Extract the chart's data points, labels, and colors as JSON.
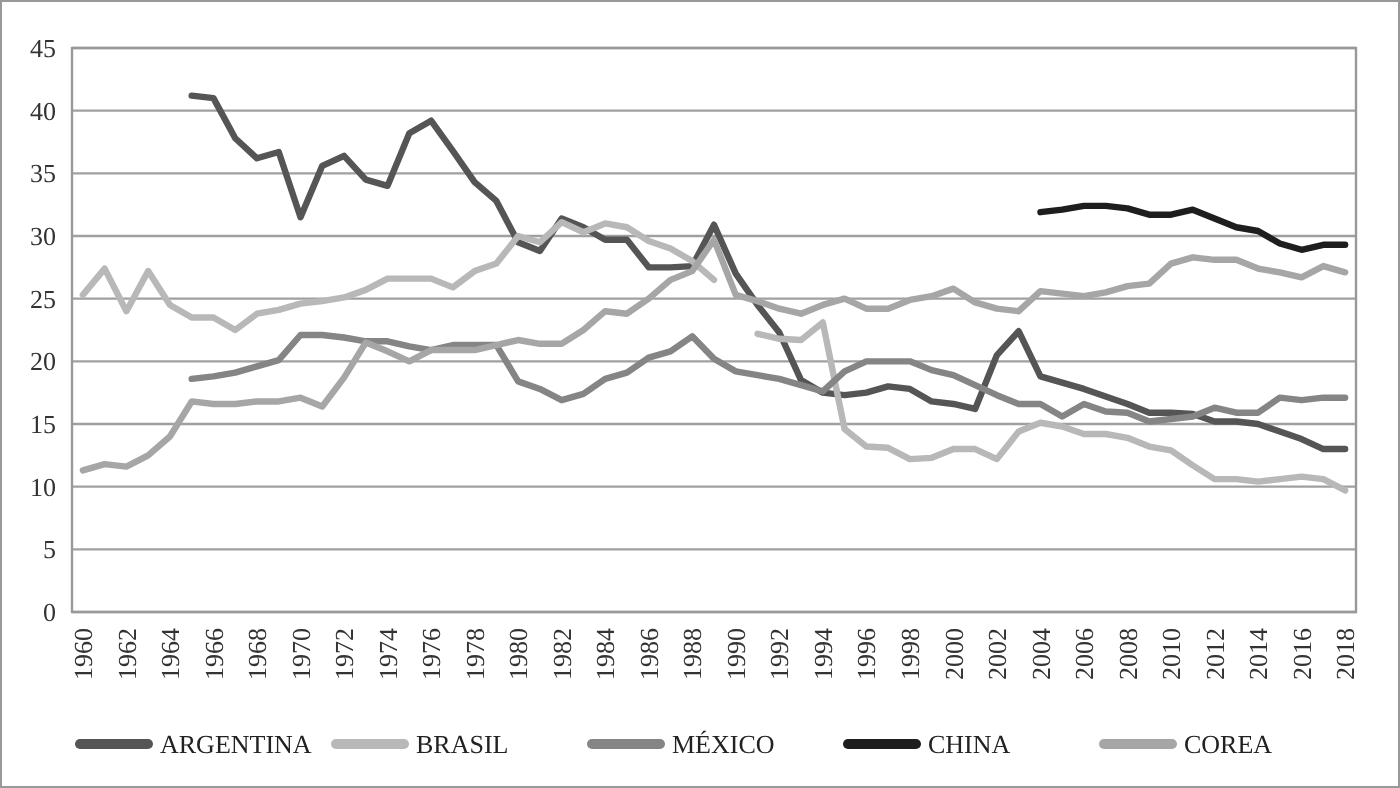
{
  "chart_data": {
    "type": "line",
    "x": [
      1960,
      1961,
      1962,
      1963,
      1964,
      1965,
      1966,
      1967,
      1968,
      1969,
      1970,
      1971,
      1972,
      1973,
      1974,
      1975,
      1976,
      1977,
      1978,
      1979,
      1980,
      1981,
      1982,
      1983,
      1984,
      1985,
      1986,
      1987,
      1988,
      1989,
      1990,
      1991,
      1992,
      1993,
      1994,
      1995,
      1996,
      1997,
      1998,
      1999,
      2000,
      2001,
      2002,
      2003,
      2004,
      2005,
      2006,
      2007,
      2008,
      2009,
      2010,
      2011,
      2012,
      2013,
      2014,
      2015,
      2016,
      2017,
      2018
    ],
    "series": [
      {
        "name": "ARGENTINA",
        "color": "#555555",
        "values": [
          null,
          null,
          null,
          null,
          null,
          41.2,
          41,
          37.8,
          36.2,
          36.7,
          31.5,
          35.6,
          36.4,
          34.5,
          34,
          38.2,
          39.2,
          36.8,
          34.3,
          32.8,
          29.5,
          28.8,
          31.4,
          30.7,
          29.7,
          29.7,
          27.5,
          27.5,
          27.6,
          30.9,
          27,
          24.5,
          22.3,
          18.5,
          17.5,
          17.3,
          17.5,
          18,
          17.8,
          16.8,
          16.6,
          16.2,
          20.5,
          22.4,
          18.8,
          18.3,
          17.8,
          17.2,
          16.6,
          15.9,
          15.9,
          15.8,
          15.2,
          15.2,
          15,
          14.4,
          13.8,
          13,
          13
        ]
      },
      {
        "name": "BRASIL",
        "color": "#b8b8b8",
        "values": [
          25.3,
          27.4,
          24,
          27.2,
          24.5,
          23.5,
          23.5,
          22.5,
          23.8,
          24.1,
          24.6,
          24.8,
          25.1,
          25.7,
          26.6,
          26.6,
          26.6,
          25.9,
          27.2,
          27.8,
          30,
          29.5,
          31.1,
          30.3,
          31,
          30.7,
          29.6,
          29,
          28,
          26.5,
          null,
          22.2,
          21.8,
          21.7,
          23.1,
          14.6,
          13.2,
          13.1,
          12.2,
          12.3,
          13,
          13,
          12.2,
          14.4,
          15.1,
          14.8,
          14.2,
          14.2,
          13.9,
          13.2,
          12.9,
          11.7,
          10.6,
          10.6,
          10.4,
          10.6,
          10.8,
          10.6,
          9.7
        ]
      },
      {
        "name": "MÉXICO",
        "color": "#858585",
        "values": [
          null,
          null,
          null,
          null,
          null,
          18.6,
          18.8,
          19.1,
          19.6,
          20.1,
          22.1,
          22.1,
          21.9,
          21.6,
          21.6,
          21.2,
          20.9,
          21.3,
          21.3,
          21.3,
          18.4,
          17.8,
          16.9,
          17.4,
          18.6,
          19.1,
          20.3,
          20.8,
          22,
          20.2,
          19.2,
          18.9,
          18.6,
          18.1,
          17.6,
          19.2,
          20,
          20,
          20,
          19.3,
          18.9,
          18.1,
          17.3,
          16.6,
          16.6,
          15.6,
          16.6,
          16,
          15.9,
          15.2,
          15.4,
          15.6,
          16.3,
          15.9,
          15.9,
          17.1,
          16.9,
          17.1,
          17.1
        ]
      },
      {
        "name": "CHINA",
        "color": "#1e1e1e",
        "values": [
          null,
          null,
          null,
          null,
          null,
          null,
          null,
          null,
          null,
          null,
          null,
          null,
          null,
          null,
          null,
          null,
          null,
          null,
          null,
          null,
          null,
          null,
          null,
          null,
          null,
          null,
          null,
          null,
          null,
          null,
          null,
          null,
          null,
          null,
          null,
          null,
          null,
          null,
          null,
          null,
          null,
          null,
          null,
          null,
          31.9,
          32.1,
          32.4,
          32.4,
          32.2,
          31.7,
          31.7,
          32.1,
          31.4,
          30.7,
          30.4,
          29.4,
          28.9,
          29.3,
          29.3
        ]
      },
      {
        "name": "COREA",
        "color": "#a6a6a6",
        "values": [
          11.3,
          11.8,
          11.6,
          12.5,
          14,
          16.8,
          16.6,
          16.6,
          16.8,
          16.8,
          17.1,
          16.4,
          18.7,
          21.5,
          20.8,
          20,
          20.9,
          20.9,
          20.9,
          21.3,
          21.7,
          21.4,
          21.4,
          22.5,
          24,
          23.8,
          25,
          26.5,
          27.2,
          29.7,
          25.3,
          24.8,
          24.2,
          23.8,
          24.5,
          25,
          24.2,
          24.2,
          24.9,
          25.2,
          25.8,
          24.7,
          24.2,
          24,
          25.6,
          25.4,
          25.2,
          25.5,
          26,
          26.2,
          27.8,
          28.3,
          28.1,
          28.1,
          27.4,
          27.1,
          26.7,
          27.6,
          27.1
        ]
      }
    ],
    "xlim": [
      1959.5,
      2018.5
    ],
    "xticks": [
      1960,
      1962,
      1964,
      1966,
      1968,
      1970,
      1972,
      1974,
      1976,
      1978,
      1980,
      1982,
      1984,
      1986,
      1988,
      1990,
      1992,
      1994,
      1996,
      1998,
      2000,
      2002,
      2004,
      2006,
      2008,
      2010,
      2012,
      2014,
      2016,
      2018
    ],
    "ylim": [
      0,
      45
    ],
    "yticks": [
      0,
      5,
      10,
      15,
      20,
      25,
      30,
      35,
      40,
      45
    ],
    "grid": "y",
    "legend": "bottom"
  }
}
